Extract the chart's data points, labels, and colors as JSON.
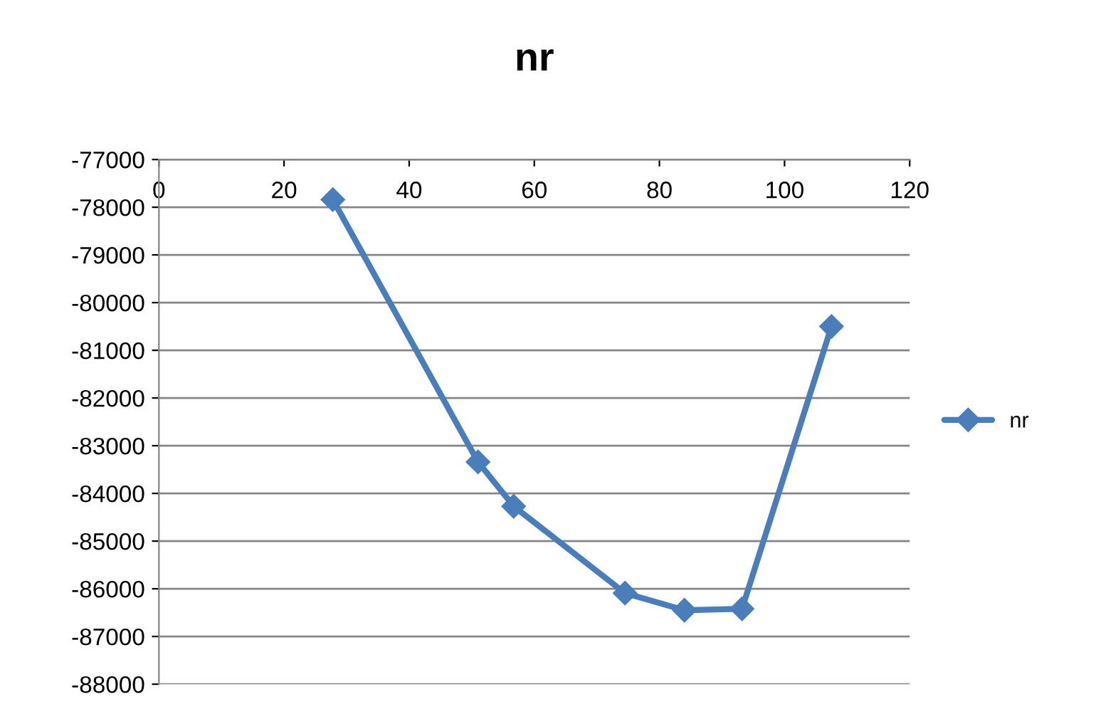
{
  "chart_data": {
    "type": "line",
    "title": "nr",
    "series": [
      {
        "name": "nr",
        "color": "#4a7ebb",
        "x": [
          27.8,
          51,
          56.7,
          74.5,
          84,
          93.2,
          107.5
        ],
        "values": [
          -77840,
          -83340,
          -84270,
          -86090,
          -86450,
          -86420,
          -80500
        ]
      }
    ],
    "xlim": [
      0,
      120
    ],
    "xticks": [
      0,
      20,
      40,
      60,
      80,
      100,
      120
    ],
    "ylim": [
      -88000,
      -77000
    ],
    "yticks": [
      -88000,
      -87000,
      -86000,
      -85000,
      -84000,
      -83000,
      -82000,
      -81000,
      -80000,
      -79000,
      -78000,
      -77000
    ],
    "grid": "y",
    "legend": "right",
    "marker": "diamond",
    "line_style": "solid"
  }
}
